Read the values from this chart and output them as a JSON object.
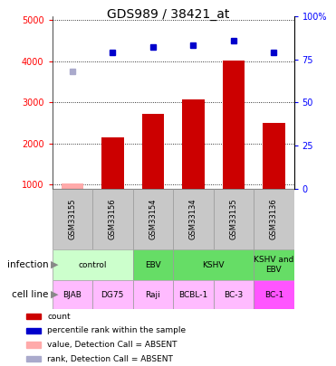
{
  "title": "GDS989 / 38421_at",
  "samples": [
    "GSM33155",
    "GSM33156",
    "GSM33154",
    "GSM33134",
    "GSM33135",
    "GSM33136"
  ],
  "bar_values": [
    1020,
    2150,
    2720,
    3060,
    4020,
    2490
  ],
  "bar_absent": [
    true,
    false,
    false,
    false,
    false,
    false
  ],
  "rank_pct": [
    68,
    79,
    82,
    83,
    86,
    79
  ],
  "rank_absent": [
    true,
    false,
    false,
    false,
    false,
    false
  ],
  "bar_color": "#cc0000",
  "bar_absent_color": "#ffaaaa",
  "rank_color": "#0000cc",
  "rank_absent_color": "#aaaacc",
  "inf_groups": [
    {
      "label": "control",
      "cols": [
        0,
        1
      ],
      "color": "#ccffcc"
    },
    {
      "label": "EBV",
      "cols": [
        2
      ],
      "color": "#66dd66"
    },
    {
      "label": "KSHV",
      "cols": [
        3,
        4
      ],
      "color": "#66dd66"
    },
    {
      "label": "KSHV and\nEBV",
      "cols": [
        5
      ],
      "color": "#66dd66"
    }
  ],
  "cell_lines": [
    "BJAB",
    "DG75",
    "Raji",
    "BCBL-1",
    "BC-3",
    "BC-1"
  ],
  "cell_colors": [
    "#ffbbff",
    "#ffbbff",
    "#ffbbff",
    "#ffbbff",
    "#ffbbff",
    "#ff55ff"
  ],
  "ylim_left": [
    900,
    5100
  ],
  "ylim_right": [
    0,
    100
  ],
  "yticks_left": [
    1000,
    2000,
    3000,
    4000,
    5000
  ],
  "yticks_right": [
    0,
    25,
    50,
    75,
    100
  ],
  "right_tick_labels": [
    "0",
    "25",
    "50",
    "75",
    "100%"
  ]
}
